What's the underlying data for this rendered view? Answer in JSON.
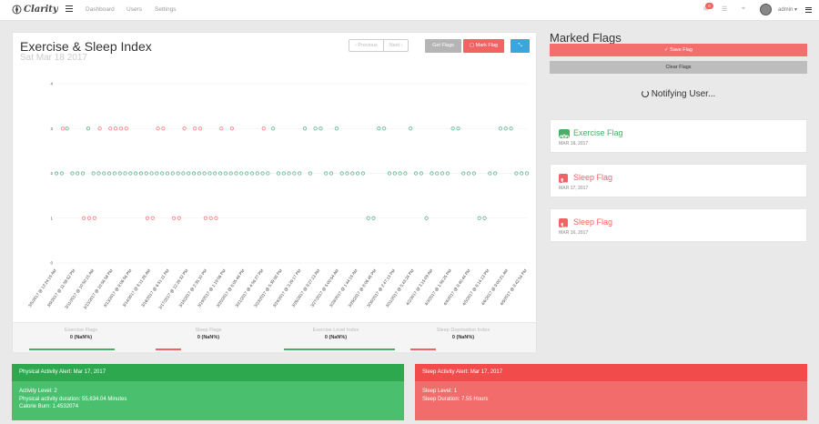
{
  "app": {
    "name": "Clarity",
    "logo_icon": "clarity-logo-icon"
  },
  "topbar": {
    "nav": [
      "Dashboard",
      "Users",
      "Settings"
    ],
    "notification_count": "0",
    "user": "admin"
  },
  "chart_card": {
    "title": "Exercise & Sleep Index",
    "subtitle": "Sat Mar 18 2017",
    "prev_label": "‹ Previous",
    "next_label": "Next ›",
    "get_flags_label": "Get Flags",
    "mark_flag_label": "Mark Flag",
    "expand_label": "⤡"
  },
  "chart_data": {
    "type": "scatter",
    "ylim": [
      0,
      4
    ],
    "yticks": [
      "0",
      "1",
      "2",
      "3",
      "4"
    ],
    "xticks": [
      "3/5/2017 @ 12:24:15 AM",
      "3/9/2017 @ 11:59:52 PM",
      "3/11/2017 @ 10:50:15 AM",
      "3/13/2017 @ 10:56:58 PM",
      "3/13/2017 @ 9:06:56 PM",
      "3/14/2017 @ 8:11:26 AM",
      "3/16/2017 @ 6:51:11 PM",
      "3/17/2017 @ 12:28:32 PM",
      "3/18/2017 @ 2:35:10 PM",
      "3/19/2017 @ 1:19:06 PM",
      "3/20/2017 @ 6:05:44 PM",
      "3/21/2017 @ 4:56:27 PM",
      "3/23/2017 @ 5:39:00 PM",
      "3/24/2017 @ 3:29:17 PM",
      "3/26/2017 @ 9:27:13 AM",
      "3/27/2017 @ 5:00:54 AM",
      "3/28/2017 @ 1:44:15 AM",
      "3/29/2017 @ 8:06:48 PM",
      "3/30/2017 @ 2:47:13 PM",
      "3/31/2017 @ 5:43:24 PM",
      "4/2/2017 @ 3:15:09 AM",
      "4/3/2017 @ 1:56:25 PM",
      "4/4/2017 @ 8:40:44 PM",
      "4/5/2017 @ 6:14:13 PM",
      "4/6/2017 @ 9:00:21 AM",
      "4/6/2017 @ 8:42:54 PM"
    ],
    "n_points": 90,
    "series": [
      {
        "color": "#62b58f",
        "values": [
          2,
          2,
          3,
          2,
          2,
          2,
          3,
          2,
          2,
          2,
          2,
          2,
          2,
          2,
          2,
          2,
          2,
          2,
          2,
          2,
          2,
          2,
          2,
          2,
          2,
          2,
          2,
          2,
          2,
          2,
          2,
          2,
          2,
          2,
          2,
          2,
          2,
          2,
          2,
          2,
          2,
          3,
          2,
          2,
          2,
          2,
          2,
          3,
          2,
          3,
          3,
          2,
          2,
          3,
          2,
          2,
          2,
          2,
          2,
          1,
          1,
          3,
          3,
          2,
          2,
          2,
          2,
          3,
          2,
          2,
          1,
          2,
          2,
          2,
          2,
          3,
          3,
          2,
          2,
          2,
          1,
          1,
          2,
          2,
          3,
          3,
          3,
          2,
          2,
          2
        ]
      },
      {
        "color": "#f08080",
        "values": [
          null,
          3,
          null,
          null,
          null,
          1,
          1,
          1,
          3,
          null,
          3,
          3,
          3,
          3,
          null,
          null,
          null,
          1,
          1,
          3,
          3,
          null,
          1,
          1,
          3,
          null,
          3,
          3,
          1,
          1,
          1,
          3,
          null,
          3,
          null,
          null,
          null,
          null,
          null,
          3,
          null,
          null,
          null,
          null,
          null,
          null,
          null,
          null,
          null,
          null,
          null,
          null,
          null,
          null,
          null,
          null,
          null,
          null,
          null,
          null,
          null,
          null,
          null,
          null,
          null,
          null,
          null,
          null,
          null,
          null,
          null,
          null,
          null,
          null,
          null,
          null,
          null,
          null,
          null,
          null,
          null,
          null,
          null,
          null,
          null,
          null,
          null,
          null,
          null,
          null
        ]
      }
    ]
  },
  "stats": [
    {
      "label": "Exercise Flags",
      "value": "0 (NaN%)",
      "color": "#4cae65"
    },
    {
      "label": "Sleep Flags",
      "value": "0 (NaN%)",
      "color": "#f26363"
    },
    {
      "label": "Exercise Level Index",
      "value": "0 (NaN%)",
      "color": "#4cae65"
    },
    {
      "label": "Sleep Deprivation Index",
      "value": "0 (NaN%)",
      "color": "#f26363"
    }
  ],
  "right": {
    "title": "Marked Flags",
    "save_label": "✓ Save Flag",
    "clear_label": "Clear Flags",
    "notify_label": "Notifying User..."
  },
  "flags": [
    {
      "name": "Exercise Flag",
      "date": "MAR 18, 2017",
      "color": "#4cae65",
      "icon": "bicycle-icon"
    },
    {
      "name": "Sleep Flag",
      "date": "MAR 17, 2017",
      "color": "#f26363",
      "icon": "phone-icon"
    },
    {
      "name": "Sleep Flag",
      "date": "MAR 16, 2017",
      "color": "#f26363",
      "icon": "phone-icon"
    }
  ],
  "alerts": {
    "physical": {
      "title": "Physical Activity Alert: Mar 17, 2017",
      "lines": [
        "Activity Level: 2",
        "Physical activity duration: 55,634.04 Minutes",
        "Calorie Burn: 1.4532074"
      ]
    },
    "sleep": {
      "title": "Sleep Activity Alert: Mar 17, 2017",
      "lines": [
        "Sleep Level: 1",
        "Sleep Duration: 7.55 Hours"
      ]
    }
  }
}
